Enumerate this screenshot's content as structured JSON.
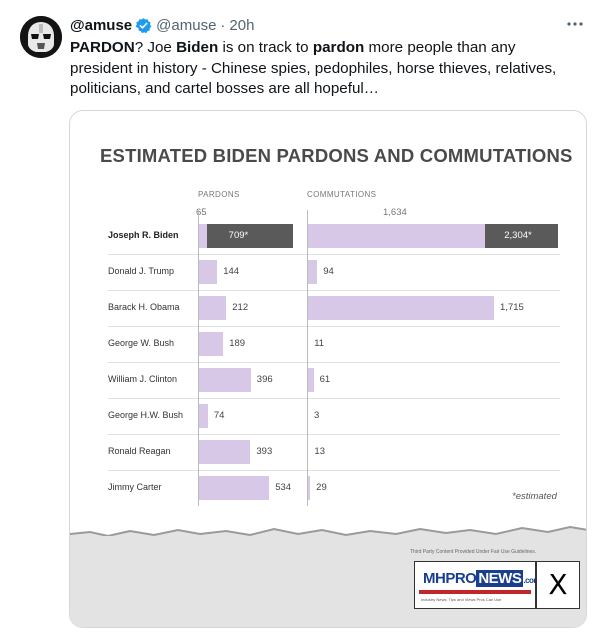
{
  "tweet": {
    "display_name": "@amuse",
    "handle": "@amuse",
    "separator": "·",
    "time": "20h",
    "text_segments": [
      {
        "t": "PARDON",
        "b": true
      },
      {
        "t": "? Joe ",
        "b": false
      },
      {
        "t": "Biden",
        "b": true
      },
      {
        "t": " is on track to ",
        "b": false
      },
      {
        "t": "pardon",
        "b": true
      },
      {
        "t": " more people than any president in history - Chinese spies, pedophiles, horse thieves, relatives, politicians, and cartel bosses are all hopeful…",
        "b": false
      }
    ],
    "icons": {
      "avatar": "stormtrooper-avatar",
      "verified": "verified-badge-icon",
      "more": "more-options-icon"
    },
    "colors": {
      "verified": "#1d9bf0",
      "muted": "#536471"
    }
  },
  "chart_data": {
    "type": "bar",
    "title": "ESTIMATED BIDEN PARDONS AND COMMUTATIONS",
    "panels": [
      "PARDONS",
      "COMMUTATIONS"
    ],
    "categories": [
      "Joseph R. Biden",
      "Donald J. Trump",
      "Barack H. Obama",
      "George W. Bush",
      "William J. Clinton",
      "George H.W. Bush",
      "Ronald Reagan",
      "Jimmy Carter"
    ],
    "series": [
      {
        "name": "PARDONS",
        "values": [
          709,
          144,
          212,
          189,
          396,
          74,
          393,
          534
        ],
        "labels": [
          "709*",
          "144",
          "212",
          "189",
          "396",
          "74",
          "393",
          "534"
        ]
      },
      {
        "name": "COMMUTATIONS",
        "values": [
          2304,
          94,
          1715,
          11,
          61,
          3,
          13,
          29
        ],
        "labels": [
          "2,304*",
          "94",
          "1,715",
          "11",
          "61",
          "3",
          "13",
          "29"
        ]
      }
    ],
    "biden_breakdown": {
      "pardons": {
        "known": 65,
        "known_label": "65",
        "estimated": 709
      },
      "commutations": {
        "known": 1634,
        "known_label": "1,634",
        "estimated": 2304
      }
    },
    "footnote": "*estimated",
    "colors": {
      "bar": "#d8c8e8",
      "estimated": "#5a5a5a"
    }
  },
  "watermark": {
    "caption": "Third Party Content Provided Under Fair Use Guidelines.",
    "logo_main": "MHPRO",
    "logo_news": "NEWS",
    "logo_suffix": ".com",
    "logo_tagline": "Industry News, Tips and Views Pros Can Use",
    "x_mark": "X"
  }
}
